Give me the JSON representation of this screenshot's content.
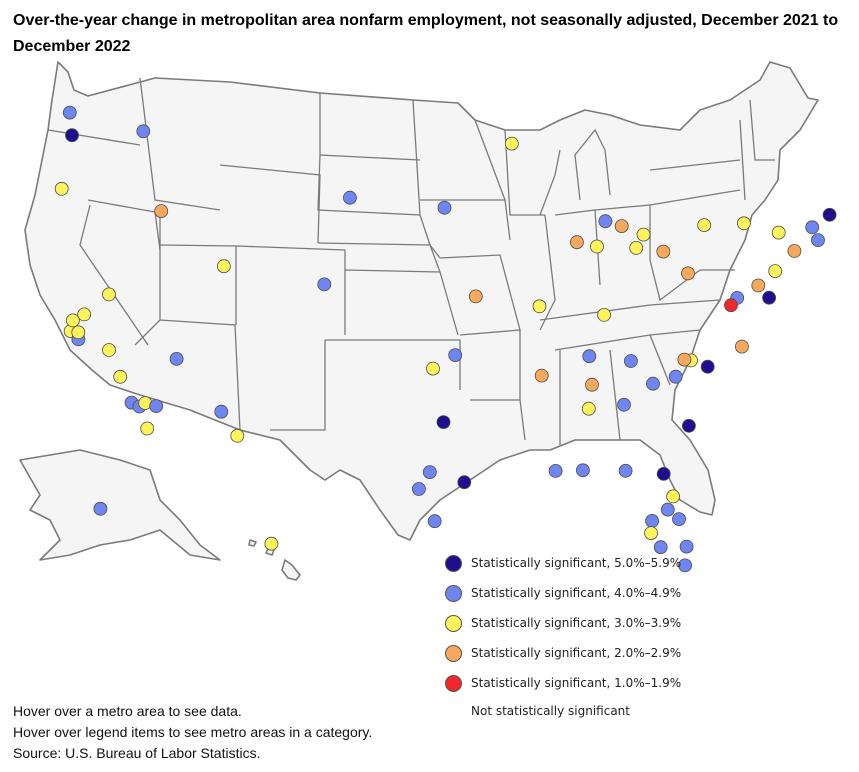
{
  "title": "Over-the-year change in metropolitan area nonfarm employment, not seasonally adjusted, December 2021 to December 2022",
  "categories": [
    {
      "key": "c5",
      "label": "Statistically significant, 5.0%–5.9%",
      "color": "#1f0f8f"
    },
    {
      "key": "c4",
      "label": "Statistically significant, 4.0%–4.9%",
      "color": "#6f86f2"
    },
    {
      "key": "c3",
      "label": "Statistically significant, 3.0%–3.9%",
      "color": "#fff35c"
    },
    {
      "key": "c2",
      "label": "Statistically significant, 2.0%–2.9%",
      "color": "#f6a85c"
    },
    {
      "key": "c1",
      "label": "Statistically significant, 1.0%–1.9%",
      "color": "#f0282a"
    },
    {
      "key": "ns",
      "label": "Not statistically significant",
      "color": ""
    }
  ],
  "notes": {
    "line1": "Hover over a metro area to see data.",
    "line2": "Hover over legend items to see metro areas in a category.",
    "source": "Source: U.S. Bureau of Labor Statistics."
  },
  "map_colors": {
    "land": "#f5f5f5",
    "border": "#7a7a7a"
  },
  "metro_points": [
    {
      "lon": -122.33,
      "lat": 47.61,
      "category": "c5"
    },
    {
      "lon": -122.48,
      "lat": 48.75,
      "category": "c4"
    },
    {
      "lon": -117.43,
      "lat": 47.66,
      "category": "c4"
    },
    {
      "lon": -123.04,
      "lat": 44.94,
      "category": "c3"
    },
    {
      "lon": -116.2,
      "lat": 43.62,
      "category": "c2"
    },
    {
      "lon": -122.42,
      "lat": 37.77,
      "category": "c3"
    },
    {
      "lon": -122.27,
      "lat": 38.3,
      "category": "c3"
    },
    {
      "lon": -121.89,
      "lat": 37.34,
      "category": "c4"
    },
    {
      "lon": -121.49,
      "lat": 38.58,
      "category": "c3"
    },
    {
      "lon": -121.9,
      "lat": 37.69,
      "category": "c3"
    },
    {
      "lon": -119.79,
      "lat": 39.53,
      "category": "c3"
    },
    {
      "lon": -119.79,
      "lat": 36.74,
      "category": "c3"
    },
    {
      "lon": -119.02,
      "lat": 35.37,
      "category": "c3"
    },
    {
      "lon": -118.24,
      "lat": 34.05,
      "category": "c4"
    },
    {
      "lon": -117.7,
      "lat": 33.84,
      "category": "c4"
    },
    {
      "lon": -117.3,
      "lat": 34.0,
      "category": "c3"
    },
    {
      "lon": -117.16,
      "lat": 32.72,
      "category": "c3"
    },
    {
      "lon": -115.14,
      "lat": 36.17,
      "category": "c4"
    },
    {
      "lon": -116.54,
      "lat": 33.83,
      "category": "c4"
    },
    {
      "lon": -112.07,
      "lat": 33.45,
      "category": "c4"
    },
    {
      "lon": -110.97,
      "lat": 32.22,
      "category": "c3"
    },
    {
      "lon": -111.89,
      "lat": 40.76,
      "category": "c3"
    },
    {
      "lon": -104.99,
      "lat": 39.74,
      "category": "c4"
    },
    {
      "lon": -103.23,
      "lat": 44.08,
      "category": "c4"
    },
    {
      "lon": -96.73,
      "lat": 43.55,
      "category": "c4"
    },
    {
      "lon": -96.8,
      "lat": 32.78,
      "category": "c5"
    },
    {
      "lon": -97.52,
      "lat": 35.47,
      "category": "c3"
    },
    {
      "lon": -95.99,
      "lat": 36.15,
      "category": "c4"
    },
    {
      "lon": -95.37,
      "lat": 29.76,
      "category": "c5"
    },
    {
      "lon": -97.74,
      "lat": 30.27,
      "category": "c4"
    },
    {
      "lon": -98.49,
      "lat": 29.42,
      "category": "c4"
    },
    {
      "lon": -97.4,
      "lat": 27.8,
      "category": "c4"
    },
    {
      "lon": -92.1,
      "lat": 46.79,
      "category": "c3"
    },
    {
      "lon": -94.58,
      "lat": 39.1,
      "category": "c2"
    },
    {
      "lon": -90.2,
      "lat": 38.63,
      "category": "c3"
    },
    {
      "lon": -87.63,
      "lat": 41.88,
      "category": "c2"
    },
    {
      "lon": -86.25,
      "lat": 41.68,
      "category": "c3"
    },
    {
      "lon": -85.67,
      "lat": 42.96,
      "category": "c4"
    },
    {
      "lon": -84.55,
      "lat": 42.73,
      "category": "c2"
    },
    {
      "lon": -83.05,
      "lat": 42.33,
      "category": "c3"
    },
    {
      "lon": -81.69,
      "lat": 41.5,
      "category": "c2"
    },
    {
      "lon": -83.55,
      "lat": 41.65,
      "category": "c3"
    },
    {
      "lon": -78.88,
      "lat": 42.89,
      "category": "c3"
    },
    {
      "lon": -76.15,
      "lat": 43.05,
      "category": "c3"
    },
    {
      "lon": -73.76,
      "lat": 42.65,
      "category": "c3"
    },
    {
      "lon": -72.68,
      "lat": 41.76,
      "category": "c2"
    },
    {
      "lon": -71.06,
      "lat": 42.36,
      "category": "c4"
    },
    {
      "lon": -70.26,
      "lat": 43.66,
      "category": "c5"
    },
    {
      "lon": -71.46,
      "lat": 42.99,
      "category": "c4"
    },
    {
      "lon": -74.0,
      "lat": 40.71,
      "category": "c3"
    },
    {
      "lon": -75.16,
      "lat": 39.95,
      "category": "c2"
    },
    {
      "lon": -74.42,
      "lat": 39.36,
      "category": "c5"
    },
    {
      "lon": -76.61,
      "lat": 39.29,
      "category": "c4"
    },
    {
      "lon": -77.04,
      "lat": 38.91,
      "category": "c1"
    },
    {
      "lon": -79.99,
      "lat": 40.44,
      "category": "c2"
    },
    {
      "lon": -76.29,
      "lat": 36.85,
      "category": "c2"
    },
    {
      "lon": -78.64,
      "lat": 35.78,
      "category": "c5"
    },
    {
      "lon": -79.79,
      "lat": 36.07,
      "category": "c3"
    },
    {
      "lon": -80.24,
      "lat": 36.1,
      "category": "c2"
    },
    {
      "lon": -80.84,
      "lat": 35.23,
      "category": "c4"
    },
    {
      "lon": -82.4,
      "lat": 34.85,
      "category": "c4"
    },
    {
      "lon": -79.93,
      "lat": 32.78,
      "category": "c5"
    },
    {
      "lon": -84.39,
      "lat": 33.75,
      "category": "c4"
    },
    {
      "lon": -86.78,
      "lat": 36.16,
      "category": "c4"
    },
    {
      "lon": -83.92,
      "lat": 35.96,
      "category": "c4"
    },
    {
      "lon": -90.05,
      "lat": 35.15,
      "category": "c2"
    },
    {
      "lon": -86.59,
      "lat": 34.73,
      "category": "c2"
    },
    {
      "lon": -86.81,
      "lat": 33.52,
      "category": "c3"
    },
    {
      "lon": -85.76,
      "lat": 38.25,
      "category": "c3"
    },
    {
      "lon": -89.09,
      "lat": 30.37,
      "category": "c4"
    },
    {
      "lon": -87.22,
      "lat": 30.42,
      "category": "c4"
    },
    {
      "lon": -84.28,
      "lat": 30.44,
      "category": "c4"
    },
    {
      "lon": -81.66,
      "lat": 30.33,
      "category": "c5"
    },
    {
      "lon": -81.02,
      "lat": 29.21,
      "category": "c3"
    },
    {
      "lon": -81.38,
      "lat": 28.54,
      "category": "c4"
    },
    {
      "lon": -80.61,
      "lat": 28.08,
      "category": "c4"
    },
    {
      "lon": -82.46,
      "lat": 27.95,
      "category": "c4"
    },
    {
      "lon": -82.53,
      "lat": 27.34,
      "category": "c3"
    },
    {
      "lon": -81.87,
      "lat": 26.64,
      "category": "c4"
    },
    {
      "lon": -80.09,
      "lat": 26.71,
      "category": "c4"
    },
    {
      "lon": -80.19,
      "lat": 25.76,
      "category": "c4"
    },
    {
      "lon": -149.9,
      "lat": 61.22,
      "category": "c4"
    },
    {
      "lon": -157.86,
      "lat": 21.31,
      "category": "c3"
    }
  ]
}
